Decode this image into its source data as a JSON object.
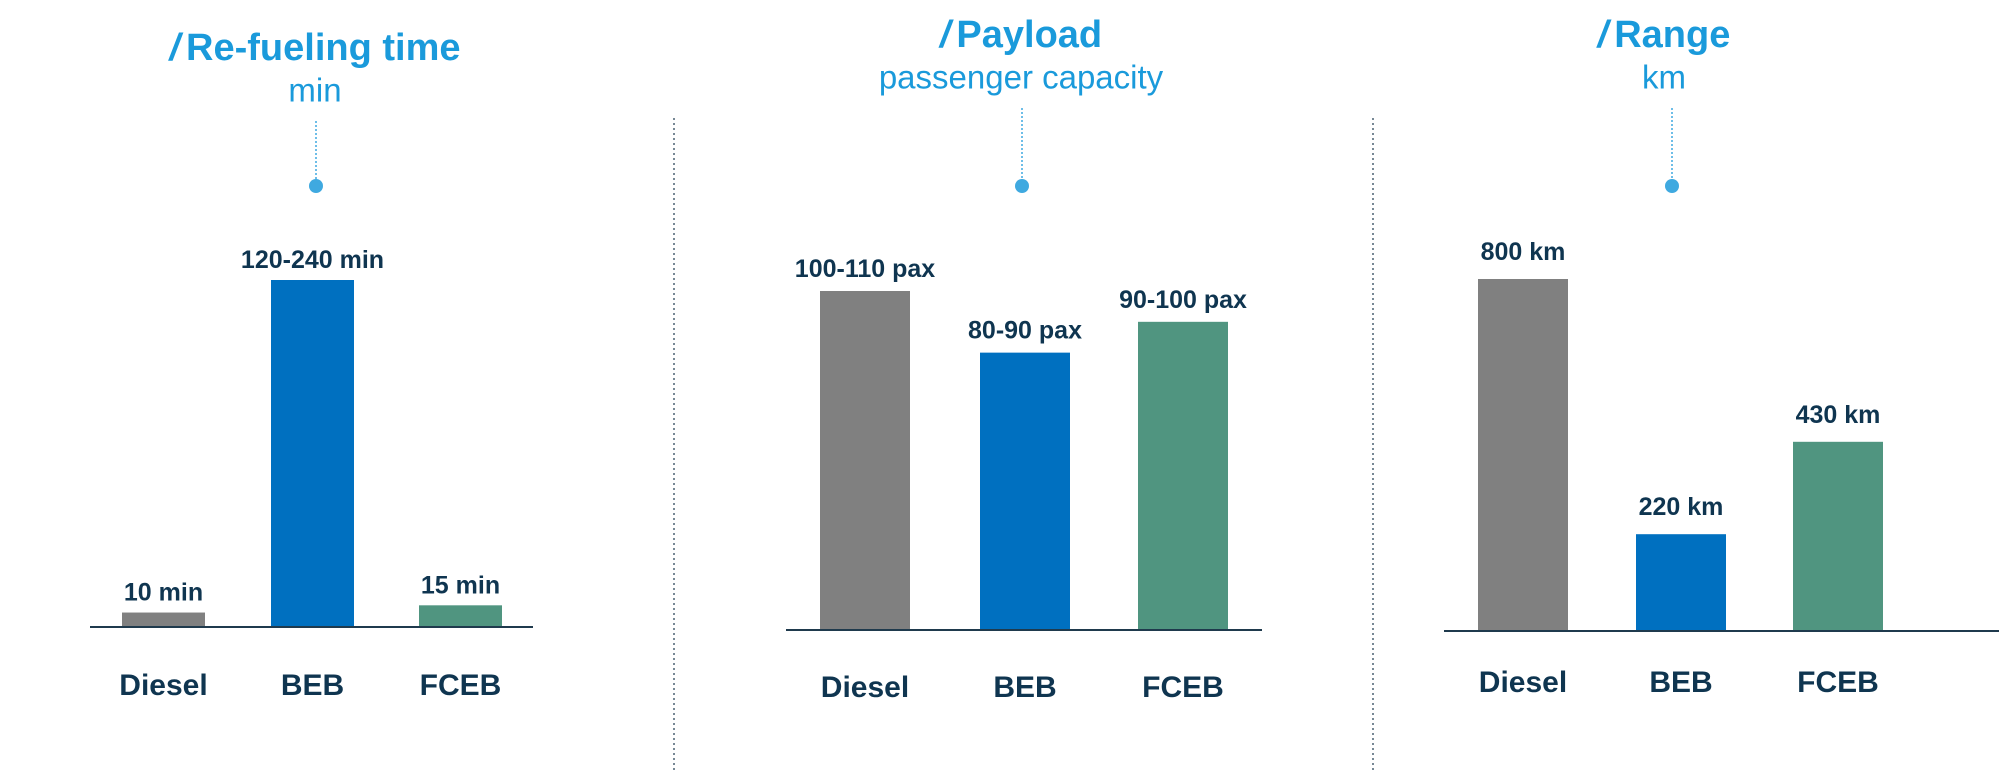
{
  "colors": {
    "title": "#1A9ADB",
    "text_dark": "#0F3550",
    "diesel": "#808080",
    "beb": "#0070C0",
    "fceb": "#509580",
    "axis": "#1F3A4D",
    "divider": "#4A6072",
    "connector": "#3FA9E0"
  },
  "title_marker": "/",
  "chart_data": [
    {
      "type": "bar",
      "title": "Re-fueling time",
      "subtitle": "min",
      "categories": [
        "Diesel",
        "BEB",
        "FCEB"
      ],
      "values": [
        10,
        240,
        15
      ],
      "value_labels": [
        "10 min",
        "120-240 min",
        "15 min"
      ],
      "ylim": [
        0,
        240
      ]
    },
    {
      "type": "bar",
      "title": "Payload",
      "subtitle": "passenger capacity",
      "categories": [
        "Diesel",
        "BEB",
        "FCEB"
      ],
      "values": [
        110,
        90,
        100
      ],
      "value_labels": [
        "100-110 pax",
        "80-90 pax",
        "90-100 pax"
      ],
      "ylim": [
        0,
        110
      ]
    },
    {
      "type": "bar",
      "title": "Range",
      "subtitle": "km",
      "categories": [
        "Diesel",
        "BEB",
        "FCEB"
      ],
      "values": [
        800,
        220,
        430
      ],
      "value_labels": [
        "800 km",
        "220 km",
        "430 km"
      ],
      "ylim": [
        0,
        800
      ]
    }
  ]
}
